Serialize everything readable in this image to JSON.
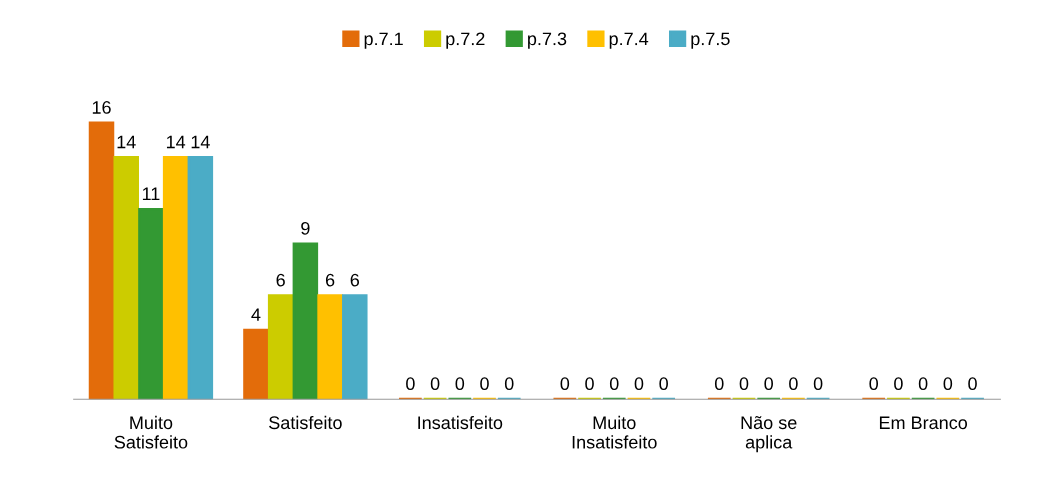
{
  "chart_data": {
    "type": "bar",
    "categories": [
      "Muito\nSatisfeito",
      "Satisfeito",
      "Insatisfeito",
      "Muito\nInsatisfeito",
      "Não se\naplica",
      "Em Branco"
    ],
    "series": [
      {
        "name": "p.7.1",
        "color": "#e36c0a",
        "values": [
          16,
          4,
          0,
          0,
          0,
          0
        ]
      },
      {
        "name": "p.7.2",
        "color": "#cccc00",
        "values": [
          14,
          6,
          0,
          0,
          0,
          0
        ]
      },
      {
        "name": "p.7.3",
        "color": "#339933",
        "values": [
          11,
          9,
          0,
          0,
          0,
          0
        ]
      },
      {
        "name": "p.7.4",
        "color": "#ffc000",
        "values": [
          14,
          6,
          0,
          0,
          0,
          0
        ]
      },
      {
        "name": "p.7.5",
        "color": "#4bacc6",
        "values": [
          14,
          6,
          0,
          0,
          0,
          0
        ]
      }
    ],
    "data_labels": true,
    "legend": "top",
    "grid": false
  }
}
